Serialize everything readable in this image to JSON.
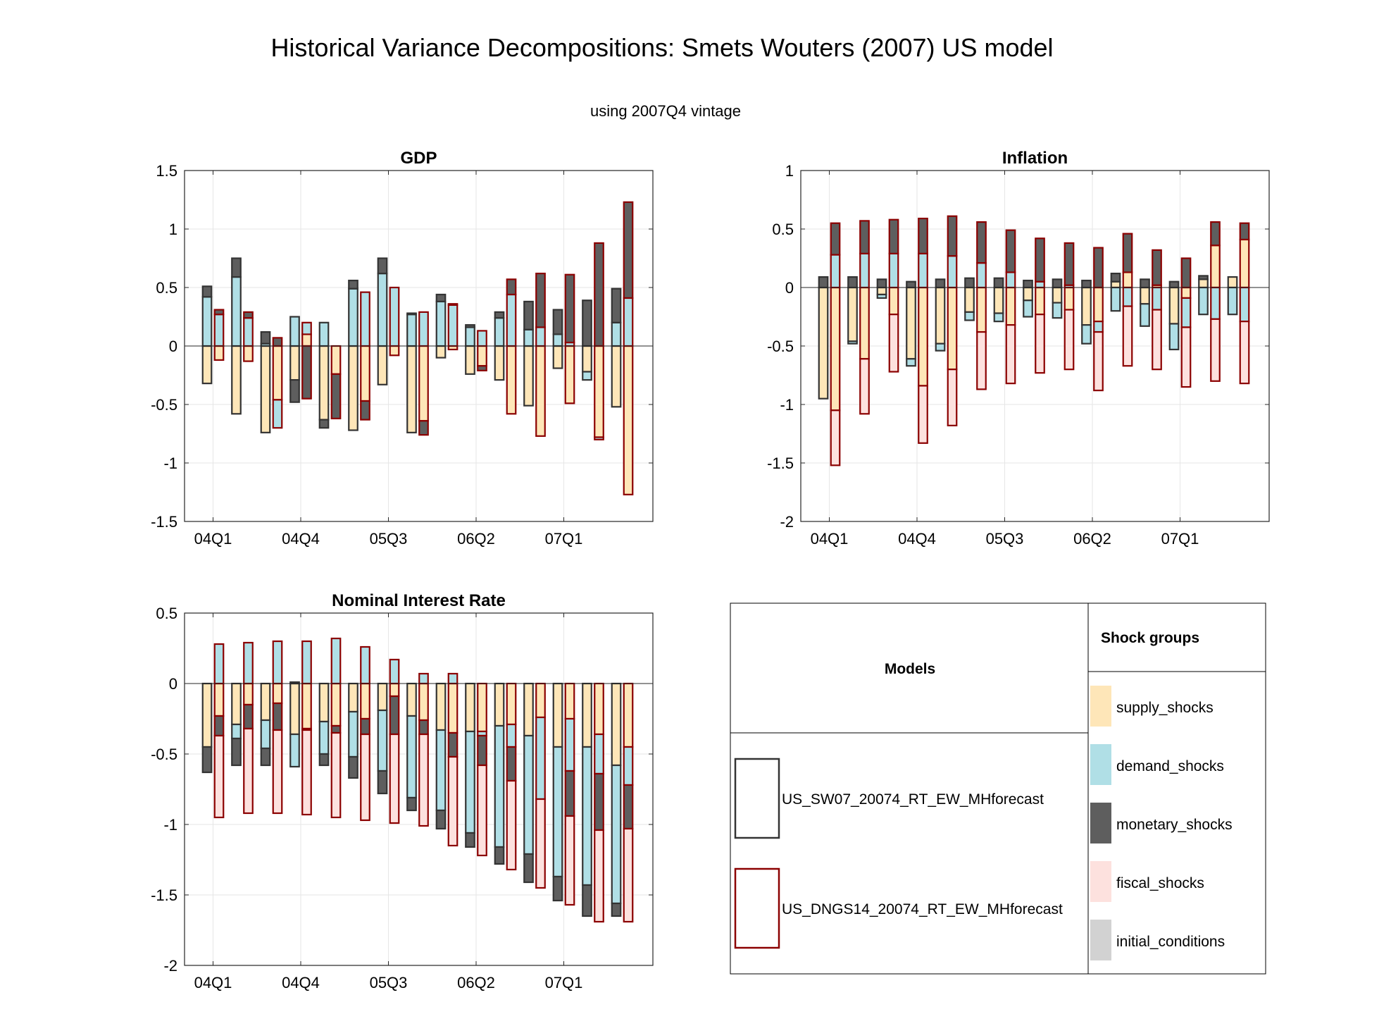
{
  "figure": {
    "title": "Historical Variance Decompositions: Smets Wouters (2007) US model",
    "subtitle": "using 2007Q4 vintage"
  },
  "colors": {
    "supply_shocks": "#FEE6B8",
    "demand_shocks": "#B0DFE6",
    "monetary_shocks": "#5E5E5E",
    "fiscal_shocks": "#FDE1DE",
    "initial_conditions": "#D2D2D2",
    "model1_outline": "#333333",
    "model2_outline": "#8B0000"
  },
  "legend": {
    "models_header": "Models",
    "groups_header": "Shock groups",
    "models": [
      {
        "name": "US_SW07_20074_RT_EW_MHforecast",
        "outline": "#333333"
      },
      {
        "name": "US_DNGS14_20074_RT_EW_MHforecast",
        "outline": "#8B0000"
      }
    ],
    "groups": [
      {
        "key": "supply_shocks",
        "label": "supply_shocks"
      },
      {
        "key": "demand_shocks",
        "label": "demand_shocks"
      },
      {
        "key": "monetary_shocks",
        "label": "monetary_shocks"
      },
      {
        "key": "fiscal_shocks",
        "label": "fiscal_shocks"
      },
      {
        "key": "initial_conditions",
        "label": "initial_conditions"
      }
    ]
  },
  "chart_data": [
    {
      "type": "bar",
      "stacked": true,
      "title": "GDP",
      "ylim": [
        -1.5,
        1.5
      ],
      "yticks": [
        -1.5,
        -1,
        -0.5,
        0,
        0.5,
        1,
        1.5
      ],
      "ytick_labels": [
        "-1.5",
        "-1",
        "-0.5",
        "0",
        "0.5",
        "1",
        "1.5"
      ],
      "xtick_labels": [
        {
          "index": 0,
          "label": "04Q1"
        },
        {
          "index": 3,
          "label": "04Q4"
        },
        {
          "index": 6,
          "label": "05Q3"
        },
        {
          "index": 9,
          "label": "06Q2"
        },
        {
          "index": 12,
          "label": "07Q1"
        }
      ],
      "grid": true,
      "periods": [
        "04Q1",
        "04Q2",
        "04Q3",
        "04Q4",
        "05Q1",
        "05Q2",
        "05Q3",
        "05Q4",
        "06Q1",
        "06Q2",
        "06Q3",
        "06Q4",
        "07Q1",
        "07Q2",
        "07Q3"
      ],
      "models": [
        {
          "name": "US_SW07_20074_RT_EW_MHforecast",
          "bars": [
            {
              "supply_shocks": -0.32,
              "demand_shocks": 0.42,
              "monetary_shocks": 0.09
            },
            {
              "supply_shocks": -0.58,
              "demand_shocks": 0.59,
              "monetary_shocks": 0.16
            },
            {
              "supply_shocks": -0.74,
              "demand_shocks": 0.02,
              "monetary_shocks": 0.1
            },
            {
              "demand_shocks": 0.25,
              "supply_shocks": -0.29,
              "monetary_shocks": -0.19
            },
            {
              "demand_shocks": 0.2,
              "supply_shocks": -0.63,
              "monetary_shocks": -0.07
            },
            {
              "demand_shocks": 0.49,
              "monetary_shocks": 0.07,
              "supply_shocks": -0.72
            },
            {
              "demand_shocks": 0.62,
              "monetary_shocks": 0.13,
              "supply_shocks": -0.33
            },
            {
              "demand_shocks": 0.27,
              "monetary_shocks": 0.01,
              "supply_shocks": -0.74
            },
            {
              "demand_shocks": 0.38,
              "monetary_shocks": 0.06,
              "supply_shocks": -0.1
            },
            {
              "demand_shocks": 0.16,
              "monetary_shocks": 0.02,
              "supply_shocks": -0.24
            },
            {
              "demand_shocks": 0.24,
              "monetary_shocks": 0.05,
              "supply_shocks": -0.29
            },
            {
              "demand_shocks": 0.14,
              "monetary_shocks": 0.24,
              "supply_shocks": -0.51
            },
            {
              "demand_shocks": 0.1,
              "monetary_shocks": 0.21,
              "supply_shocks": -0.19
            },
            {
              "monetary_shocks": 0.39,
              "supply_shocks": -0.22,
              "demand_shocks": -0.07
            },
            {
              "demand_shocks": 0.2,
              "monetary_shocks": 0.29,
              "supply_shocks": -0.52
            }
          ]
        },
        {
          "name": "US_DNGS14_20074_RT_EW_MHforecast",
          "bars": [
            {
              "demand_shocks": 0.27,
              "monetary_shocks": 0.04,
              "supply_shocks": -0.12
            },
            {
              "demand_shocks": 0.24,
              "monetary_shocks": 0.05,
              "supply_shocks": -0.13
            },
            {
              "monetary_shocks": 0.07,
              "supply_shocks": -0.46,
              "demand_shocks": -0.24
            },
            {
              "demand_shocks": 0.1,
              "supply_shocks": 0.1,
              "monetary_shocks": -0.45
            },
            {
              "supply_shocks": -0.24,
              "monetary_shocks": -0.38
            },
            {
              "supply_shocks": -0.47,
              "demand_shocks": 0.46,
              "monetary_shocks": -0.16
            },
            {
              "demand_shocks": 0.5,
              "supply_shocks": -0.08
            },
            {
              "demand_shocks": 0.29,
              "supply_shocks": -0.64,
              "monetary_shocks": -0.12
            },
            {
              "demand_shocks": 0.35,
              "monetary_shocks": 0.01,
              "supply_shocks": -0.03
            },
            {
              "demand_shocks": 0.13,
              "supply_shocks": -0.17,
              "monetary_shocks": -0.04
            },
            {
              "demand_shocks": 0.44,
              "monetary_shocks": 0.13,
              "supply_shocks": -0.58
            },
            {
              "demand_shocks": 0.16,
              "monetary_shocks": 0.46,
              "supply_shocks": -0.77
            },
            {
              "demand_shocks": 0.03,
              "monetary_shocks": 0.58,
              "supply_shocks": -0.49
            },
            {
              "monetary_shocks": 0.88,
              "supply_shocks": -0.78,
              "demand_shocks": -0.02
            },
            {
              "demand_shocks": 0.41,
              "monetary_shocks": 0.82,
              "supply_shocks": -1.27
            }
          ]
        }
      ]
    },
    {
      "type": "bar",
      "stacked": true,
      "title": "Inflation",
      "ylim": [
        -2,
        1
      ],
      "yticks": [
        -2,
        -1.5,
        -1,
        -0.5,
        0,
        0.5,
        1
      ],
      "ytick_labels": [
        "-2",
        "-1.5",
        "-1",
        "-0.5",
        "0",
        "0.5",
        "1"
      ],
      "xtick_labels": [
        {
          "index": 0,
          "label": "04Q1"
        },
        {
          "index": 3,
          "label": "04Q4"
        },
        {
          "index": 6,
          "label": "05Q3"
        },
        {
          "index": 9,
          "label": "06Q2"
        },
        {
          "index": 12,
          "label": "07Q1"
        }
      ],
      "grid": true,
      "periods": [
        "04Q1",
        "04Q2",
        "04Q3",
        "04Q4",
        "05Q1",
        "05Q2",
        "05Q3",
        "05Q4",
        "06Q1",
        "06Q2",
        "06Q3",
        "06Q4",
        "07Q1",
        "07Q2",
        "07Q3"
      ],
      "models": [
        {
          "name": "US_SW07_20074_RT_EW_MHforecast",
          "bars": [
            {
              "monetary_shocks": 0.09,
              "supply_shocks": -0.95
            },
            {
              "monetary_shocks": 0.09,
              "supply_shocks": -0.46,
              "demand_shocks": -0.02
            },
            {
              "monetary_shocks": 0.07,
              "supply_shocks": -0.06,
              "demand_shocks": -0.03
            },
            {
              "monetary_shocks": 0.05,
              "supply_shocks": -0.61,
              "demand_shocks": -0.06
            },
            {
              "monetary_shocks": 0.07,
              "supply_shocks": -0.48,
              "demand_shocks": -0.06
            },
            {
              "monetary_shocks": 0.08,
              "supply_shocks": -0.21,
              "demand_shocks": -0.07
            },
            {
              "monetary_shocks": 0.08,
              "supply_shocks": -0.22,
              "demand_shocks": -0.07
            },
            {
              "monetary_shocks": 0.06,
              "supply_shocks": -0.11,
              "demand_shocks": -0.14
            },
            {
              "monetary_shocks": 0.07,
              "supply_shocks": -0.13,
              "demand_shocks": -0.13
            },
            {
              "monetary_shocks": 0.06,
              "supply_shocks": -0.32,
              "demand_shocks": -0.16
            },
            {
              "supply_shocks": 0.05,
              "monetary_shocks": 0.07,
              "demand_shocks": -0.2
            },
            {
              "monetary_shocks": 0.07,
              "supply_shocks": -0.14,
              "demand_shocks": -0.19
            },
            {
              "monetary_shocks": 0.05,
              "supply_shocks": -0.31,
              "demand_shocks": -0.22
            },
            {
              "supply_shocks": 0.07,
              "monetary_shocks": 0.03,
              "demand_shocks": -0.23
            },
            {
              "supply_shocks": 0.09,
              "demand_shocks": -0.23
            }
          ]
        },
        {
          "name": "US_DNGS14_20074_RT_EW_MHforecast",
          "bars": [
            {
              "demand_shocks": 0.28,
              "monetary_shocks": 0.27,
              "supply_shocks": -1.05,
              "fiscal_shocks": -0.47
            },
            {
              "demand_shocks": 0.29,
              "monetary_shocks": 0.28,
              "supply_shocks": -0.61,
              "fiscal_shocks": -0.47
            },
            {
              "demand_shocks": 0.29,
              "monetary_shocks": 0.29,
              "supply_shocks": -0.23,
              "fiscal_shocks": -0.49
            },
            {
              "demand_shocks": 0.29,
              "monetary_shocks": 0.3,
              "supply_shocks": -0.84,
              "fiscal_shocks": -0.49
            },
            {
              "demand_shocks": 0.27,
              "monetary_shocks": 0.34,
              "supply_shocks": -0.7,
              "fiscal_shocks": -0.48
            },
            {
              "demand_shocks": 0.21,
              "monetary_shocks": 0.35,
              "supply_shocks": -0.38,
              "fiscal_shocks": -0.49
            },
            {
              "demand_shocks": 0.13,
              "monetary_shocks": 0.36,
              "supply_shocks": -0.32,
              "fiscal_shocks": -0.5
            },
            {
              "demand_shocks": 0.05,
              "monetary_shocks": 0.37,
              "supply_shocks": -0.23,
              "fiscal_shocks": -0.5
            },
            {
              "demand_shocks": 0.02,
              "monetary_shocks": 0.36,
              "supply_shocks": -0.19,
              "fiscal_shocks": -0.51
            },
            {
              "monetary_shocks": 0.34,
              "supply_shocks": -0.29,
              "demand_shocks": -0.09,
              "fiscal_shocks": -0.5
            },
            {
              "supply_shocks": 0.13,
              "monetary_shocks": 0.33,
              "demand_shocks": -0.16,
              "fiscal_shocks": -0.51
            },
            {
              "supply_shocks": 0.02,
              "monetary_shocks": 0.3,
              "demand_shocks": -0.19,
              "fiscal_shocks": -0.51
            },
            {
              "supply_shocks": -0.09,
              "monetary_shocks": 0.25,
              "demand_shocks": -0.25,
              "fiscal_shocks": -0.51
            },
            {
              "supply_shocks": 0.36,
              "monetary_shocks": 0.2,
              "demand_shocks": -0.27,
              "fiscal_shocks": -0.53
            },
            {
              "supply_shocks": 0.41,
              "monetary_shocks": 0.14,
              "demand_shocks": -0.29,
              "fiscal_shocks": -0.53
            }
          ]
        }
      ]
    },
    {
      "type": "bar",
      "stacked": true,
      "title": "Nominal Interest Rate",
      "ylim": [
        -2,
        0.5
      ],
      "yticks": [
        -2,
        -1.5,
        -1,
        -0.5,
        0,
        0.5
      ],
      "ytick_labels": [
        "-2",
        "-1.5",
        "-1",
        "-0.5",
        "0",
        "0.5"
      ],
      "xtick_labels": [
        {
          "index": 0,
          "label": "04Q1"
        },
        {
          "index": 3,
          "label": "04Q4"
        },
        {
          "index": 6,
          "label": "05Q3"
        },
        {
          "index": 9,
          "label": "06Q2"
        },
        {
          "index": 12,
          "label": "07Q1"
        }
      ],
      "grid": true,
      "periods": [
        "04Q1",
        "04Q2",
        "04Q3",
        "04Q4",
        "05Q1",
        "05Q2",
        "05Q3",
        "05Q4",
        "06Q1",
        "06Q2",
        "06Q3",
        "06Q4",
        "07Q1",
        "07Q2",
        "07Q3"
      ],
      "models": [
        {
          "name": "US_SW07_20074_RT_EW_MHforecast",
          "bars": [
            {
              "supply_shocks": -0.45,
              "monetary_shocks": -0.18
            },
            {
              "supply_shocks": -0.29,
              "demand_shocks": -0.1,
              "monetary_shocks": -0.19
            },
            {
              "supply_shocks": -0.26,
              "demand_shocks": -0.2,
              "monetary_shocks": -0.12
            },
            {
              "monetary_shocks": 0.01,
              "supply_shocks": -0.36,
              "demand_shocks": -0.23
            },
            {
              "supply_shocks": -0.27,
              "demand_shocks": -0.23,
              "monetary_shocks": -0.08
            },
            {
              "supply_shocks": -0.2,
              "demand_shocks": -0.32,
              "monetary_shocks": -0.15
            },
            {
              "supply_shocks": -0.19,
              "demand_shocks": -0.43,
              "monetary_shocks": -0.16
            },
            {
              "supply_shocks": -0.23,
              "demand_shocks": -0.58,
              "monetary_shocks": -0.09
            },
            {
              "supply_shocks": -0.33,
              "demand_shocks": -0.57,
              "monetary_shocks": -0.13
            },
            {
              "supply_shocks": -0.34,
              "demand_shocks": -0.72,
              "monetary_shocks": -0.1
            },
            {
              "supply_shocks": -0.3,
              "demand_shocks": -0.86,
              "monetary_shocks": -0.12
            },
            {
              "supply_shocks": -0.37,
              "demand_shocks": -0.84,
              "monetary_shocks": -0.2
            },
            {
              "supply_shocks": -0.45,
              "demand_shocks": -0.92,
              "monetary_shocks": -0.17
            },
            {
              "supply_shocks": -0.45,
              "demand_shocks": -0.98,
              "monetary_shocks": -0.22
            },
            {
              "supply_shocks": -0.58,
              "demand_shocks": -0.98,
              "monetary_shocks": -0.09
            }
          ]
        },
        {
          "name": "US_DNGS14_20074_RT_EW_MHforecast",
          "bars": [
            {
              "demand_shocks": 0.28,
              "supply_shocks": -0.23,
              "monetary_shocks": -0.14,
              "fiscal_shocks": -0.58
            },
            {
              "demand_shocks": 0.29,
              "supply_shocks": -0.15,
              "monetary_shocks": -0.17,
              "fiscal_shocks": -0.6
            },
            {
              "demand_shocks": 0.3,
              "supply_shocks": -0.14,
              "monetary_shocks": -0.19,
              "fiscal_shocks": -0.59
            },
            {
              "demand_shocks": 0.3,
              "supply_shocks": -0.32,
              "monetary_shocks": -0.01,
              "fiscal_shocks": -0.6
            },
            {
              "demand_shocks": 0.32,
              "supply_shocks": -0.3,
              "monetary_shocks": -0.05,
              "fiscal_shocks": -0.6
            },
            {
              "demand_shocks": 0.26,
              "supply_shocks": -0.25,
              "monetary_shocks": -0.11,
              "fiscal_shocks": -0.61
            },
            {
              "demand_shocks": 0.17,
              "supply_shocks": -0.09,
              "monetary_shocks": -0.27,
              "fiscal_shocks": -0.63
            },
            {
              "demand_shocks": 0.07,
              "supply_shocks": -0.26,
              "monetary_shocks": -0.1,
              "fiscal_shocks": -0.65
            },
            {
              "demand_shocks": 0.07,
              "supply_shocks": -0.35,
              "monetary_shocks": -0.17,
              "fiscal_shocks": -0.63
            },
            {
              "supply_shocks": -0.34,
              "demand_shocks": -0.03,
              "monetary_shocks": -0.21,
              "fiscal_shocks": -0.64
            },
            {
              "supply_shocks": -0.29,
              "demand_shocks": -0.16,
              "monetary_shocks": -0.24,
              "fiscal_shocks": -0.63
            },
            {
              "supply_shocks": -0.24,
              "demand_shocks": -0.58,
              "monetary_shocks": -0.0,
              "fiscal_shocks": -0.63
            },
            {
              "supply_shocks": -0.25,
              "demand_shocks": -0.37,
              "monetary_shocks": -0.32,
              "fiscal_shocks": -0.63
            },
            {
              "supply_shocks": -0.36,
              "demand_shocks": -0.28,
              "monetary_shocks": -0.4,
              "fiscal_shocks": -0.65
            },
            {
              "supply_shocks": -0.45,
              "demand_shocks": -0.27,
              "monetary_shocks": -0.31,
              "fiscal_shocks": -0.66
            }
          ]
        }
      ]
    }
  ]
}
